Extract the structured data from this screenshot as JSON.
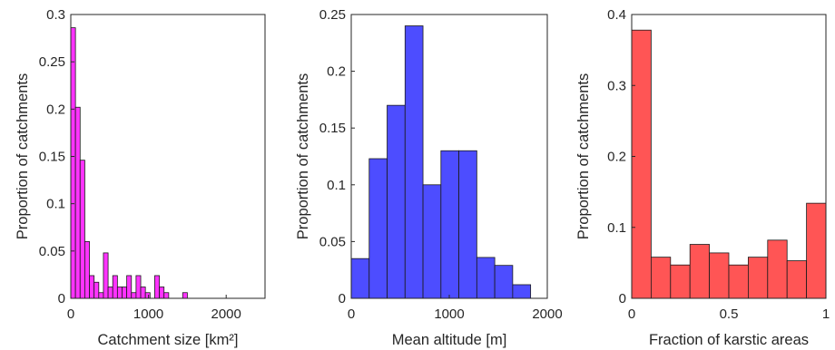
{
  "chart_data": [
    {
      "type": "bar",
      "title": "",
      "xlabel": "Catchment size [km²]",
      "ylabel": "Proportion of catchments",
      "xlim": [
        0,
        2500
      ],
      "ylim": [
        0,
        0.3
      ],
      "xticks": [
        0,
        1000,
        2000
      ],
      "xtick_labels": [
        "0",
        "1000",
        "2000"
      ],
      "yticks": [
        0,
        0.05,
        0.1,
        0.15,
        0.2,
        0.25,
        0.3
      ],
      "ytick_labels": [
        "0",
        "0.05",
        "0.1",
        "0.15",
        "0.2",
        "0.25",
        "0.3"
      ],
      "color": "#ff33ff",
      "bin_width": 60,
      "bin_start": 0,
      "values": [
        0.286,
        0.202,
        0.146,
        0.06,
        0.024,
        0.017,
        0.006,
        0.048,
        0.012,
        0.024,
        0.012,
        0.012,
        0.024,
        0.006,
        0.024,
        0.012,
        0.006,
        0.0,
        0.024,
        0.012,
        0.006,
        0.0,
        0.0,
        0.0,
        0.006,
        0.0,
        0.0,
        0.0,
        0.0,
        0.0,
        0.0,
        0.0,
        0.0,
        0.0,
        0.0,
        0.0,
        0.0,
        0.0,
        0.0,
        0.0,
        0.0,
        0.0,
        0.0,
        0.0,
        0.0,
        0.0
      ]
    },
    {
      "type": "bar",
      "title": "",
      "xlabel": "Mean altitude [m]",
      "ylabel": "Proportion of catchments",
      "xlim": [
        0,
        2000
      ],
      "ylim": [
        0,
        0.25
      ],
      "xticks": [
        0,
        1000,
        2000
      ],
      "xtick_labels": [
        "0",
        "1000",
        "2000"
      ],
      "yticks": [
        0,
        0.05,
        0.1,
        0.15,
        0.2,
        0.25
      ],
      "ytick_labels": [
        "0",
        "0.05",
        "0.1",
        "0.15",
        "0.2",
        "0.25"
      ],
      "color": "#4d4dff",
      "bin_width": 183,
      "bin_start": 0,
      "values": [
        0.035,
        0.123,
        0.17,
        0.24,
        0.1,
        0.13,
        0.13,
        0.036,
        0.029,
        0.012
      ]
    },
    {
      "type": "bar",
      "title": "",
      "xlabel": "Fraction of karstic areas",
      "ylabel": "Proportion of catchments",
      "xlim": [
        0,
        1
      ],
      "ylim": [
        0,
        0.4
      ],
      "xticks": [
        0,
        0.5,
        1
      ],
      "xtick_labels": [
        "0",
        "0.5",
        "1"
      ],
      "yticks": [
        0,
        0.1,
        0.2,
        0.3,
        0.4
      ],
      "ytick_labels": [
        "0",
        "0.1",
        "0.2",
        "0.3",
        "0.4"
      ],
      "color": "#ff5555",
      "bin_width": 0.1,
      "bin_start": 0,
      "values": [
        0.378,
        0.058,
        0.047,
        0.076,
        0.064,
        0.047,
        0.058,
        0.082,
        0.053,
        0.134
      ]
    }
  ]
}
